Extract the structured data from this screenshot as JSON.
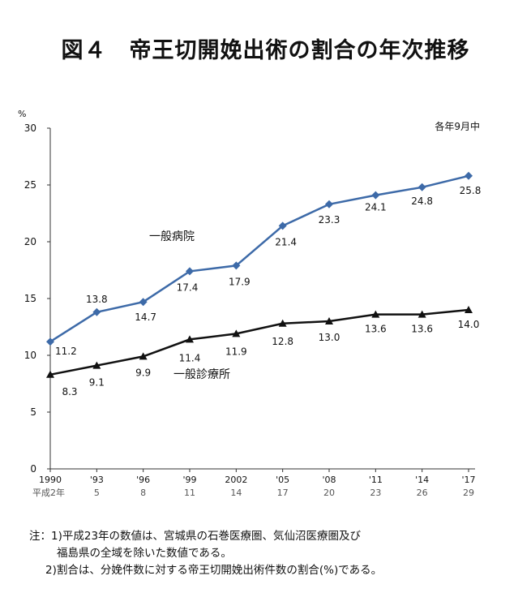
{
  "title": "図４　帝王切開娩出術の割合の年次推移",
  "chart_data": {
    "type": "line",
    "ylabel": "%",
    "ylim": [
      0,
      30
    ],
    "yticks": [
      0,
      5,
      10,
      15,
      20,
      25,
      30
    ],
    "annotation": "各年9月中",
    "x_labels_top": [
      "1990",
      "'93",
      "'96",
      "'99",
      "2002",
      "'05",
      "'08",
      "'11",
      "'14",
      "'17"
    ],
    "x_labels_bottom": [
      "平成2年",
      "5",
      "8",
      "11",
      "14",
      "17",
      "20",
      "23",
      "26",
      "29"
    ],
    "series": [
      {
        "name": "一般病院",
        "color": "#3d6aa8",
        "marker": "diamond",
        "values": [
          11.2,
          13.8,
          14.7,
          17.4,
          17.9,
          21.4,
          23.3,
          24.1,
          24.8,
          25.8
        ],
        "labels": [
          "11.2",
          "13.8",
          "14.7",
          "17.4",
          "17.9",
          "21.4",
          "23.3",
          "24.1",
          "24.8",
          "25.8"
        ]
      },
      {
        "name": "一般診療所",
        "color": "#111111",
        "marker": "triangle",
        "values": [
          8.3,
          9.1,
          9.9,
          11.4,
          11.9,
          12.8,
          13.0,
          13.6,
          13.6,
          14.0
        ],
        "labels": [
          "8.3",
          "9.1",
          "9.9",
          "11.4",
          "11.9",
          "12.8",
          "13.0",
          "13.6",
          "13.6",
          "14.0"
        ]
      }
    ]
  },
  "notes": [
    "注：1)平成23年の数値は、宮城県の石巻医療圏、気仙沼医療圏及び",
    "福島県の全域を除いた数値である。",
    "2)割合は、分娩件数に対する帝王切開娩出術件数の割合(%)である。"
  ]
}
